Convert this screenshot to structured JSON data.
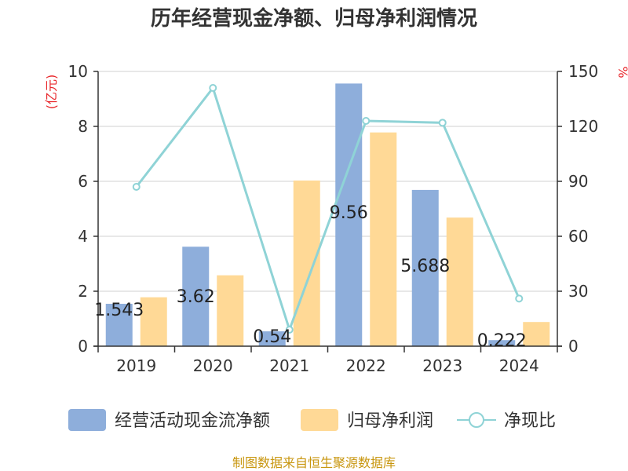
{
  "chart_data": {
    "type": "bar",
    "title": "历年经营现金净额、归母净利润情况",
    "categories": [
      "2019",
      "2020",
      "2021",
      "2022",
      "2023",
      "2024"
    ],
    "series": [
      {
        "name": "经营活动现金流净额",
        "kind": "bar",
        "axis": "left",
        "color": "#8eaedb",
        "values": [
          1.543,
          3.62,
          0.54,
          9.56,
          5.688,
          0.222
        ],
        "labels": [
          "1.543",
          "3.62",
          "0.54",
          "9.56",
          "5.688",
          "0.222"
        ]
      },
      {
        "name": "归母净利润",
        "kind": "bar",
        "axis": "left",
        "color": "#ffd996",
        "values": [
          1.78,
          2.58,
          6.03,
          7.78,
          4.68,
          0.88
        ]
      },
      {
        "name": "净现比",
        "kind": "line",
        "axis": "right",
        "color": "#8fd3d6",
        "values": [
          87,
          141,
          9,
          123,
          122,
          26
        ]
      }
    ],
    "y_left": {
      "label": "(亿元)",
      "ylim": [
        0,
        10
      ],
      "ticks": [
        0,
        2,
        4,
        6,
        8,
        10
      ]
    },
    "y_right": {
      "label": "%",
      "ylim": [
        0,
        150
      ],
      "ticks": [
        0,
        30,
        60,
        90,
        120,
        150
      ]
    },
    "grid": true,
    "legend": "bottom"
  },
  "footer": {
    "source": "制图数据来自恒生聚源数据库"
  }
}
